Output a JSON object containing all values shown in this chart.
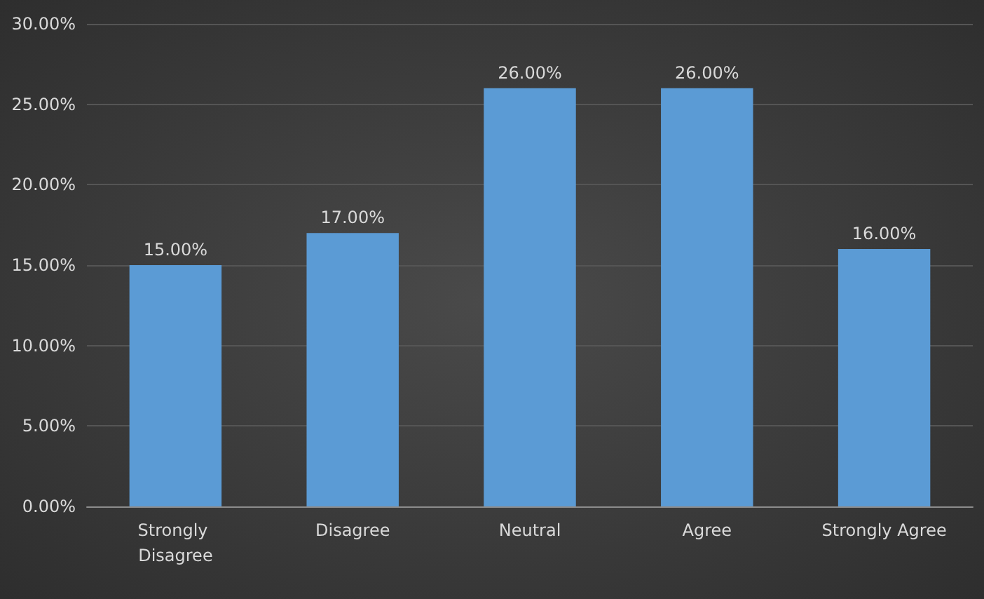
{
  "chart_data": {
    "type": "bar",
    "categories": [
      "Strongly Disagree",
      "Disagree",
      "Neutral",
      "Agree",
      "Strongly Agree"
    ],
    "values": [
      15,
      17,
      26,
      26,
      16
    ],
    "value_labels": [
      "15.00%",
      "17.00%",
      "26.00%",
      "26.00%",
      "16.00%"
    ],
    "color": "#5b9bd5",
    "ylim": [
      0,
      30
    ],
    "yticks": [
      {
        "value": 0,
        "label": "0.00%"
      },
      {
        "value": 5,
        "label": "5.00%"
      },
      {
        "value": 10,
        "label": "10.00%"
      },
      {
        "value": 15,
        "label": "15.00%"
      },
      {
        "value": 20,
        "label": "20.00%"
      },
      {
        "value": 25,
        "label": "25.00%"
      },
      {
        "value": 30,
        "label": "30.00%"
      }
    ],
    "grid": "y"
  }
}
